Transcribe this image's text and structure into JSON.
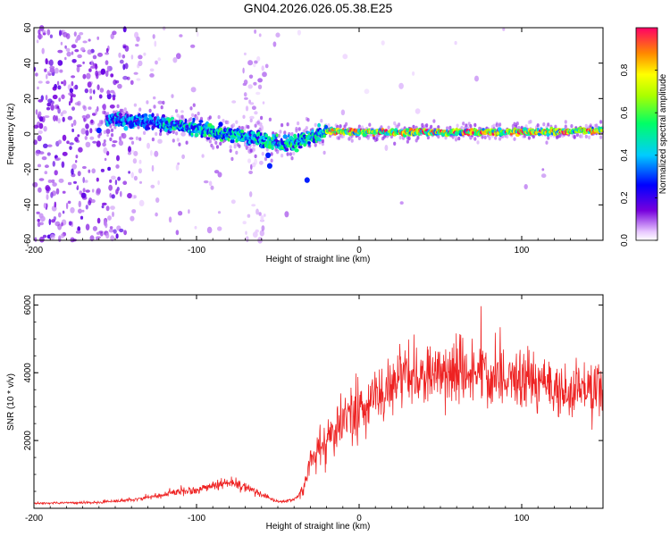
{
  "title": "GN04.2026.026.05.38.E25",
  "chart_data": [
    {
      "type": "heatmap",
      "xlabel": "Height of straight line (km)",
      "ylabel": "Frequency (Hz)",
      "xlim": [
        -200,
        150
      ],
      "ylim": [
        -60,
        60
      ],
      "xticks": [
        -200,
        -100,
        0,
        100
      ],
      "yticks": [
        -60,
        -40,
        -20,
        0,
        20,
        40,
        60
      ],
      "ridge": {
        "description_units": "frequency (Hz) of strongest band vs height (km)",
        "x": [
          -150,
          -120,
          -100,
          -80,
          -60,
          -45,
          -30,
          -20,
          0,
          50,
          100,
          150
        ],
        "y": [
          8,
          6,
          3,
          0,
          -3,
          -6,
          -2,
          2,
          1,
          1,
          1,
          2
        ]
      },
      "colorbar": {
        "label": "Normalized spectral amplitude",
        "min": 0.0,
        "max": 1.0,
        "ticks": [
          "0.0",
          "0.2",
          "0.4",
          "0.6",
          "0.8"
        ]
      }
    },
    {
      "type": "line",
      "xlabel": "Height of straight line (km)",
      "ylabel": "SNR (10 * v/v)",
      "xlim": [
        -200,
        150
      ],
      "ylim": [
        0,
        6300
      ],
      "xticks": [
        -200,
        -100,
        0,
        100
      ],
      "yticks": [
        2000,
        4000,
        6000
      ],
      "series": [
        {
          "name": "SNR",
          "color": "#ee2222",
          "envelope_x": [
            -200,
            -180,
            -160,
            -140,
            -120,
            -110,
            -100,
            -90,
            -80,
            -70,
            -60,
            -50,
            -40,
            -35,
            -30,
            -25,
            -20,
            -15,
            -10,
            0,
            10,
            20,
            30,
            40,
            50,
            60,
            70,
            80,
            90,
            100,
            110,
            120,
            130,
            140,
            150
          ],
          "envelope_y": [
            150,
            160,
            170,
            250,
            400,
            500,
            550,
            650,
            750,
            650,
            400,
            200,
            250,
            500,
            1200,
            1700,
            1900,
            2200,
            2500,
            2900,
            3200,
            3600,
            3800,
            4000,
            4050,
            4000,
            4000,
            3900,
            3850,
            3800,
            3700,
            3600,
            3500,
            3500,
            3450
          ]
        }
      ]
    }
  ]
}
